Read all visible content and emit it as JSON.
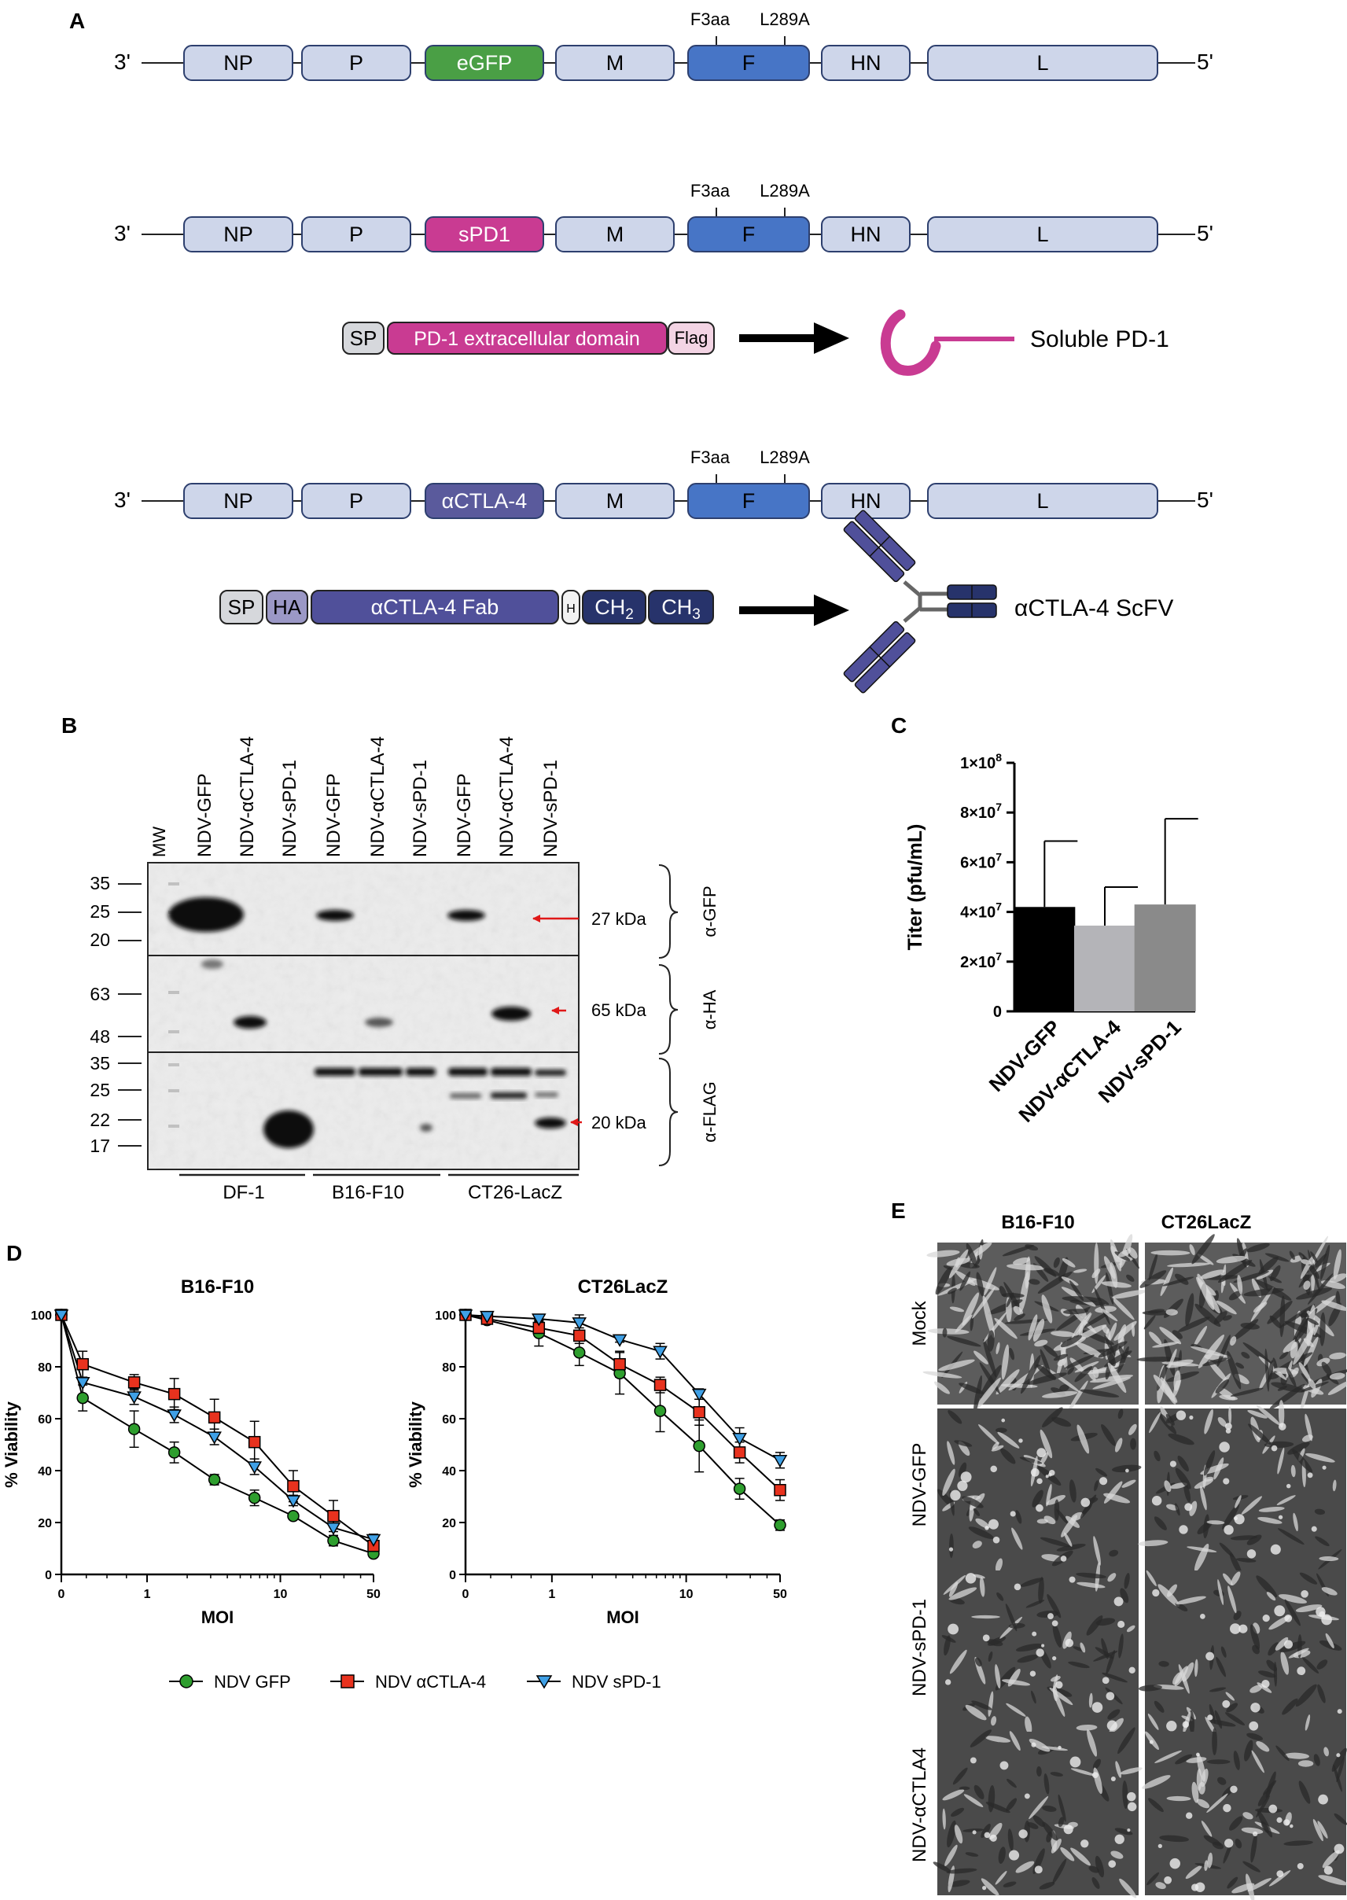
{
  "panels": {
    "A": "A",
    "B": "B",
    "C": "C",
    "D": "D",
    "E": "E"
  },
  "genome": {
    "end3": "3'",
    "end5": "5'",
    "genes": [
      "NP",
      "P",
      "M",
      "F",
      "HN",
      "L"
    ],
    "f_mutations": [
      "F3aa",
      "L289A"
    ],
    "constructs": [
      {
        "insert": "eGFP",
        "insert_color": "#4a9f45"
      },
      {
        "insert": "sPD1",
        "insert_color": "#c93b92"
      },
      {
        "insert": "αCTLA-4",
        "insert_color": "#5a5a9c"
      }
    ]
  },
  "spd1_cassette": {
    "sp": "SP",
    "domain": "PD-1 extracellular domain",
    "flag": "Flag",
    "product": "Soluble PD-1"
  },
  "ctla4_cassette": {
    "sp": "SP",
    "ha": "HA",
    "fab": "αCTLA-4 Fab",
    "hinge": "H",
    "ch2_base": "CH",
    "ch2_sub": "2",
    "ch3_base": "CH",
    "ch3_sub": "3",
    "product": "αCTLA-4 ScFV"
  },
  "western": {
    "mw_label": "MW",
    "lanes": [
      "NDV-GFP",
      "NDV-αCTLA-4",
      "NDV-sPD-1",
      "NDV-GFP",
      "NDV-αCTLA-4",
      "NDV-sPD-1",
      "NDV-GFP",
      "NDV-αCTLA-4",
      "NDV-sPD-1"
    ],
    "blots": [
      {
        "antibody": "α-GFP",
        "size": "27 kDa",
        "markers": [
          "35",
          "25",
          "20"
        ]
      },
      {
        "antibody": "α-HA",
        "size": "65 kDa",
        "markers": [
          "63",
          "48"
        ]
      },
      {
        "antibody": "α-FLAG",
        "size": "20 kDa",
        "markers": [
          "35",
          "25",
          "22",
          "17"
        ]
      }
    ],
    "cell_lines": [
      "DF-1",
      "B16-F10",
      "CT26-LacZ"
    ]
  },
  "chart_data": [
    {
      "type": "bar",
      "panel": "C",
      "ylabel": "Titer (pfu/mL)",
      "categories": [
        "NDV-GFP",
        "NDV-αCTLA-4",
        "NDV-sPD-1"
      ],
      "values": [
        42000000,
        34500000,
        43000000
      ],
      "errors": [
        26500000,
        15500000,
        34500000
      ],
      "colors": [
        "#000000",
        "#b4b4b8",
        "#8a8a8a"
      ],
      "ylim": [
        0,
        100000000
      ],
      "yticks": [
        {
          "value": 0,
          "base": "0",
          "exp": ""
        },
        {
          "value": 20000000,
          "base": "2×10",
          "exp": "7"
        },
        {
          "value": 40000000,
          "base": "4×10",
          "exp": "7"
        },
        {
          "value": 60000000,
          "base": "6×10",
          "exp": "7"
        },
        {
          "value": 80000000,
          "base": "8×10",
          "exp": "7"
        },
        {
          "value": 100000000,
          "base": "1×10",
          "exp": "8"
        }
      ]
    },
    {
      "type": "line",
      "panel": "D",
      "title": "B16-F10",
      "xlabel": "MOI",
      "ylabel": "% Viability",
      "x": [
        0,
        0.3,
        0.8,
        1.6,
        3.2,
        6.4,
        12.5,
        25,
        50
      ],
      "xticks": [
        "0",
        "1",
        "10",
        "50"
      ],
      "ylim": [
        0,
        100
      ],
      "yticks": [
        "0",
        "20",
        "40",
        "60",
        "80",
        "100"
      ],
      "series": [
        {
          "name": "NDV GFP",
          "color": "#2e9e2e",
          "marker": "circle",
          "values": [
            100,
            68,
            56,
            47,
            36.5,
            29.5,
            22.5,
            13,
            8
          ],
          "errors": [
            0,
            5,
            7,
            4,
            2,
            3,
            1,
            2,
            1
          ]
        },
        {
          "name": "NDV αCTLA-4",
          "color": "#e8321e",
          "marker": "square",
          "values": [
            100,
            81,
            74,
            69.5,
            60.5,
            51,
            34,
            22.5,
            11
          ],
          "errors": [
            0,
            5,
            3,
            6,
            7,
            8,
            6,
            6,
            2
          ]
        },
        {
          "name": "NDV sPD-1",
          "color": "#3fa0e6",
          "marker": "triangle",
          "values": [
            100,
            74,
            68.5,
            61.5,
            53,
            41.5,
            28.5,
            18,
            13.5
          ],
          "errors": [
            0,
            5,
            3,
            3,
            3,
            3,
            2,
            3,
            2
          ]
        }
      ]
    },
    {
      "type": "line",
      "panel": "D",
      "title": "CT26LacZ",
      "xlabel": "MOI",
      "ylabel": "% Viability",
      "x": [
        0,
        0.3,
        0.8,
        1.6,
        3.2,
        6.4,
        12.5,
        25,
        50
      ],
      "xticks": [
        "0",
        "1",
        "10",
        "50"
      ],
      "ylim": [
        0,
        100
      ],
      "yticks": [
        "0",
        "20",
        "40",
        "60",
        "80",
        "100"
      ],
      "series": [
        {
          "name": "NDV GFP",
          "color": "#2e9e2e",
          "marker": "circle",
          "values": [
            100,
            98,
            93,
            85.5,
            77.5,
            63,
            49.5,
            33,
            19
          ],
          "errors": [
            0,
            1,
            5,
            5,
            8,
            8,
            10,
            4,
            2
          ]
        },
        {
          "name": "NDV αCTLA-4",
          "color": "#e8321e",
          "marker": "square",
          "values": [
            100,
            98.5,
            95,
            92,
            81,
            73,
            62.5,
            47,
            32.5
          ],
          "errors": [
            0,
            1,
            3,
            3,
            5,
            3,
            5,
            4,
            4
          ]
        },
        {
          "name": "NDV sPD-1",
          "color": "#3fa0e6",
          "marker": "triangle",
          "values": [
            100,
            99.5,
            98.5,
            97,
            90.5,
            86,
            69.5,
            52.5,
            44
          ],
          "errors": [
            0,
            1,
            1,
            3,
            1,
            3,
            2,
            4,
            3
          ]
        }
      ]
    }
  ],
  "legend": [
    "NDV GFP",
    "NDV αCTLA-4",
    "NDV sPD-1"
  ],
  "micrographs": {
    "columns": [
      "B16-F10",
      "CT26LacZ"
    ],
    "rows": [
      "Mock",
      "NDV-GFP",
      "NDV-sPD-1",
      "NDV-αCTLA4"
    ]
  }
}
